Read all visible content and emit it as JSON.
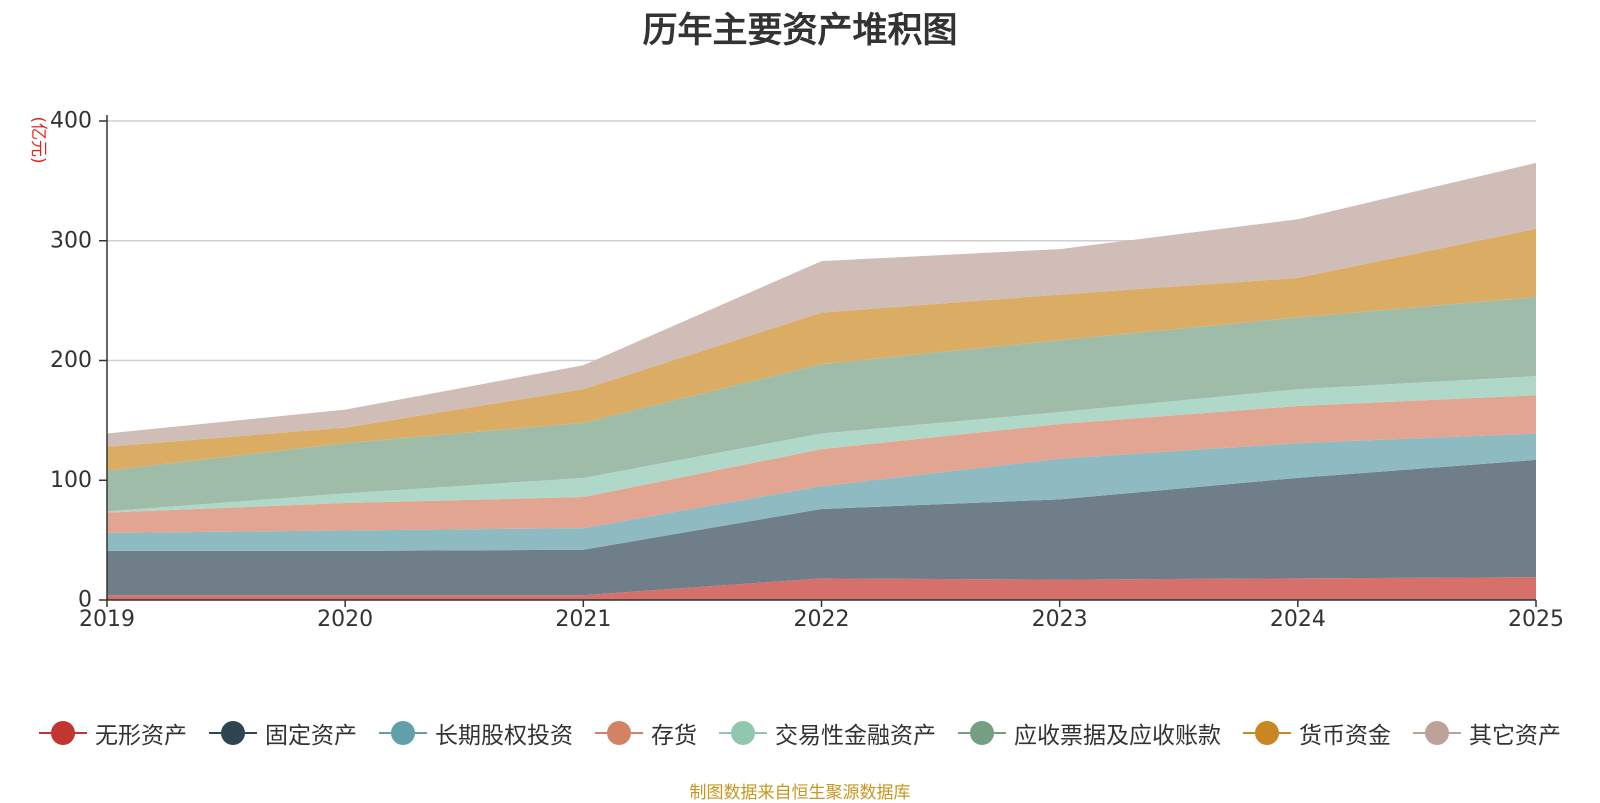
{
  "chart_data": {
    "type": "area",
    "stacked": true,
    "title": "历年主要资产堆积图",
    "ylabel": "(亿元)",
    "xlabel": "",
    "ylim": [
      0,
      400
    ],
    "yticks": [
      "0",
      "100",
      "200",
      "300",
      "400"
    ],
    "categories": [
      "2019",
      "2020",
      "2021",
      "2022",
      "2023",
      "2024",
      "2025"
    ],
    "series": [
      {
        "name": "无形资产",
        "color": "#d6706b",
        "legend_color": "#c23531",
        "values": [
          4,
          4,
          4,
          18,
          17,
          18,
          19
        ]
      },
      {
        "name": "固定资产",
        "color": "#6f7e89",
        "legend_color": "#2f4554",
        "values": [
          37,
          37,
          38,
          58,
          67,
          84,
          98
        ]
      },
      {
        "name": "长期股权投资",
        "color": "#8dbbc1",
        "legend_color": "#61a0a8",
        "values": [
          15,
          17,
          18,
          19,
          34,
          29,
          22
        ]
      },
      {
        "name": "存货",
        "color": "#e1a591",
        "legend_color": "#d48265",
        "values": [
          17,
          23,
          26,
          31,
          29,
          31,
          32
        ]
      },
      {
        "name": "交易性金融资产",
        "color": "#b0d8c8",
        "legend_color": "#91c7ae",
        "values": [
          1,
          8,
          16,
          13,
          10,
          14,
          16
        ]
      },
      {
        "name": "应收票据及应收账款",
        "color": "#9fbca8",
        "legend_color": "#749f83",
        "values": [
          34,
          42,
          46,
          58,
          60,
          60,
          66
        ]
      },
      {
        "name": "货币资金",
        "color": "#dbac63",
        "legend_color": "#ca8622",
        "values": [
          20,
          13,
          28,
          43,
          38,
          33,
          57
        ]
      },
      {
        "name": "其它资产",
        "color": "#d1bdb7",
        "legend_color": "#bda29a",
        "values": [
          11,
          15,
          20,
          43,
          38,
          49,
          55
        ]
      }
    ]
  },
  "source_note": "制图数据来自恒生聚源数据库"
}
